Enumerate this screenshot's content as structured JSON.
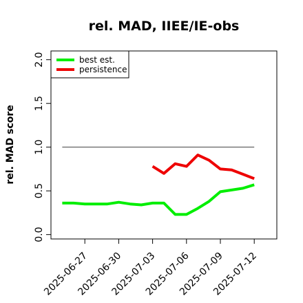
{
  "chart_data": {
    "type": "line",
    "title": "rel. MAD, IIEE/IE-obs",
    "ylabel": "rel. MAD score",
    "xlabel": "",
    "ylim": [
      -0.05,
      2.1
    ],
    "xlim": [
      "2025-06-24",
      "2025-07-14"
    ],
    "yticks": [
      0.0,
      0.5,
      1.0,
      1.5,
      2.0
    ],
    "ytick_labels": [
      "0.0",
      "0.5",
      "1.0",
      "1.5",
      "2.0"
    ],
    "xticks": [
      "2025-06-27",
      "2025-06-30",
      "2025-07-03",
      "2025-07-06",
      "2025-07-09",
      "2025-07-12"
    ],
    "legend_position": "top-left",
    "reference_line": {
      "y": 1.0,
      "x_start": "2025-06-25",
      "x_end": "2025-07-12",
      "color": "#777777"
    },
    "series": [
      {
        "name": "best est.",
        "color": "#00ee00",
        "points": [
          [
            "2025-06-25",
            0.36
          ],
          [
            "2025-06-26",
            0.36
          ],
          [
            "2025-06-27",
            0.35
          ],
          [
            "2025-06-28",
            0.35
          ],
          [
            "2025-06-29",
            0.35
          ],
          [
            "2025-06-30",
            0.37
          ],
          [
            "2025-07-01",
            0.35
          ],
          [
            "2025-07-02",
            0.34
          ],
          [
            "2025-07-03",
            0.36
          ],
          [
            "2025-07-04",
            0.36
          ],
          [
            "2025-07-05",
            0.23
          ],
          [
            "2025-07-06",
            0.23
          ],
          [
            "2025-07-07",
            0.3
          ],
          [
            "2025-07-08",
            0.38
          ],
          [
            "2025-07-09",
            0.49
          ],
          [
            "2025-07-10",
            0.51
          ],
          [
            "2025-07-11",
            0.53
          ],
          [
            "2025-07-12",
            0.57
          ]
        ]
      },
      {
        "name": "persistence",
        "color": "#ee0000",
        "points": [
          [
            "2025-07-03",
            0.78
          ],
          [
            "2025-07-04",
            0.7
          ],
          [
            "2025-07-05",
            0.81
          ],
          [
            "2025-07-06",
            0.78
          ],
          [
            "2025-07-07",
            0.91
          ],
          [
            "2025-07-08",
            0.85
          ],
          [
            "2025-07-09",
            0.75
          ],
          [
            "2025-07-10",
            0.74
          ],
          [
            "2025-07-11",
            0.69
          ],
          [
            "2025-07-12",
            0.64
          ]
        ]
      }
    ]
  }
}
